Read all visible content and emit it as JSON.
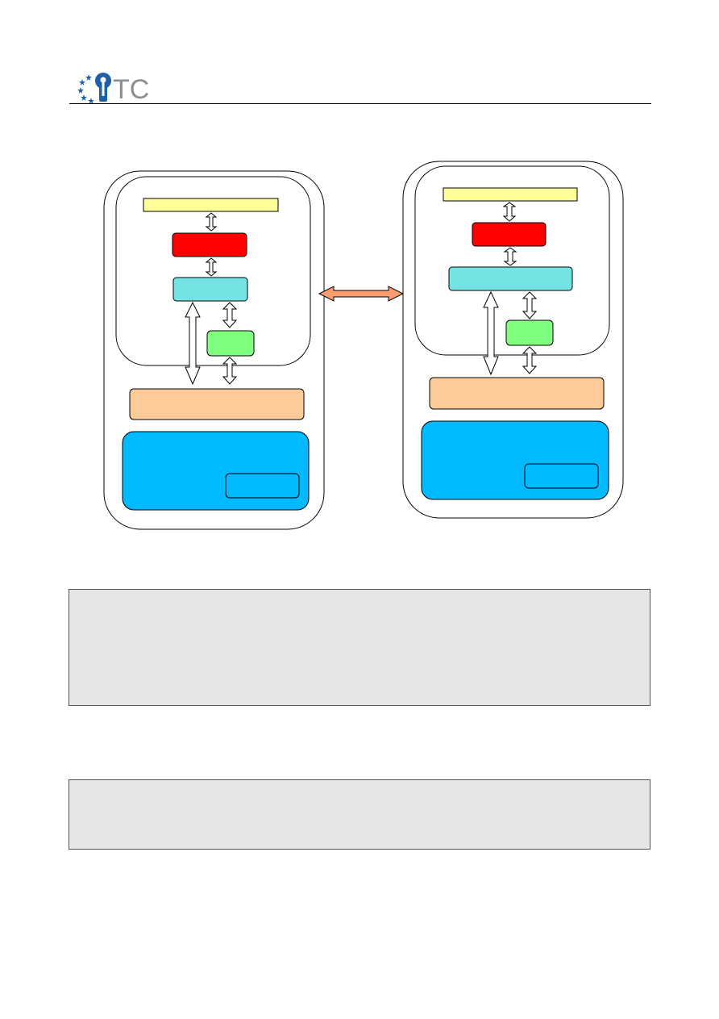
{
  "header": {
    "logo_text": "TC",
    "logo_colors": {
      "text": "#8a8f96",
      "keyhole": "#1d5fa8",
      "stars": "#1d5fa8"
    }
  },
  "colors": {
    "yellow_bar": "#ffff99",
    "red_block": "#ff0000",
    "cyan_block": "#74e3e3",
    "green_block": "#80ff80",
    "orange_bar": "#fdca99",
    "blue_block": "#00b9ff",
    "link_arrow": "#fb9c6f",
    "gray_box": "#e6e6e6"
  },
  "text_boxes": [
    {
      "text": ""
    },
    {
      "text": ""
    }
  ]
}
